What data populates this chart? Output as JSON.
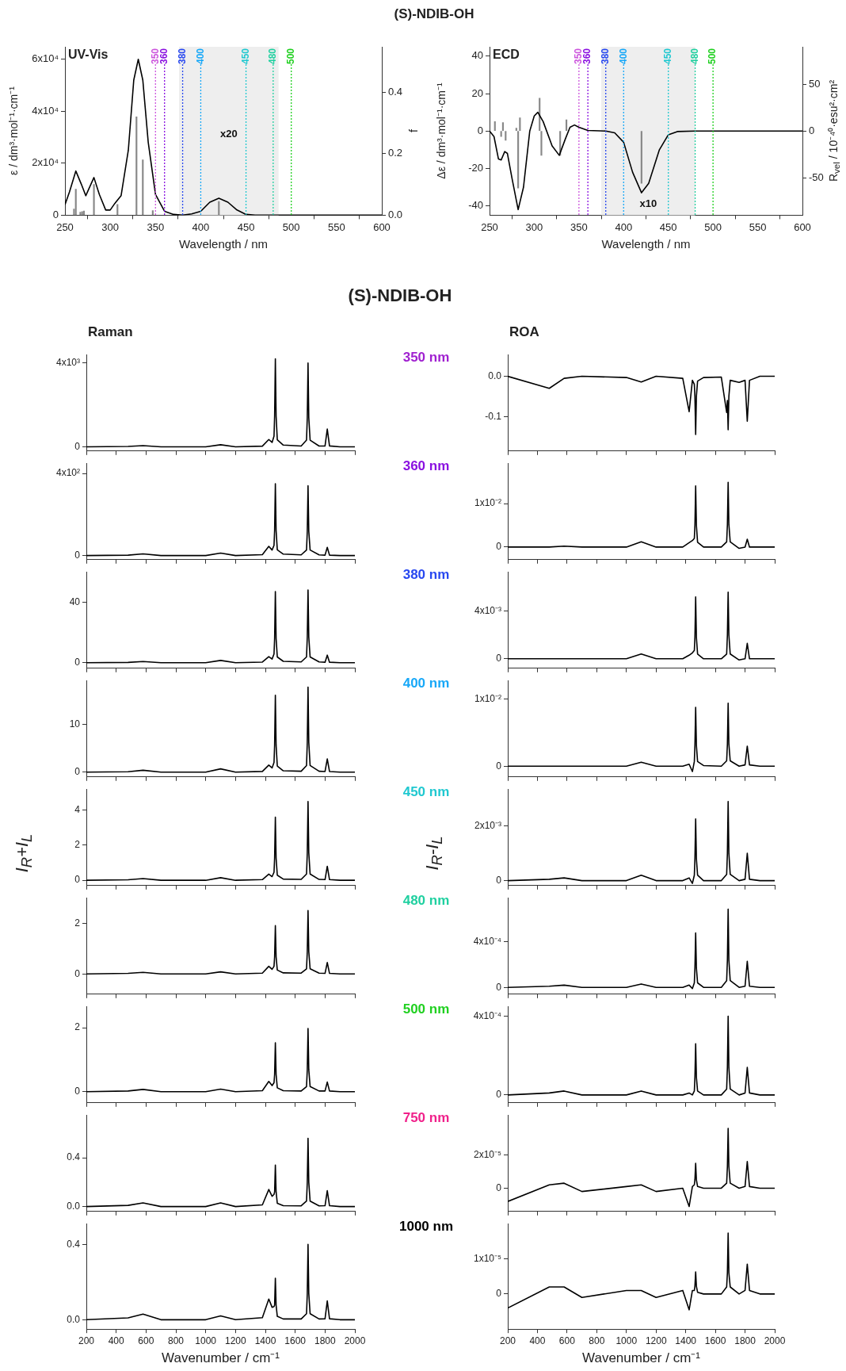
{
  "chart_data": [
    {
      "type": "line",
      "title": "(S)-NDIB-OH",
      "subtitle": "UV-Vis",
      "xlabel": "Wavelength / nm",
      "ylabel": "ε / dm³·mol⁻¹·cm⁻¹",
      "y2label": "f",
      "xlim": [
        250,
        600
      ],
      "xticks": [
        250,
        300,
        350,
        400,
        450,
        500,
        550,
        600
      ],
      "ylim": [
        0,
        64800
      ],
      "yticks": [
        0,
        {
          "value": 20000,
          "label": "2x10⁴"
        },
        {
          "value": 40000,
          "label": "4x10⁴"
        },
        {
          "value": 60000,
          "label": "6x10⁴"
        }
      ],
      "y2lim": [
        0,
        0.548
      ],
      "y2ticks": [
        {
          "value": 0,
          "label": "0.0"
        },
        0.2,
        0.4
      ],
      "series": [
        {
          "type": "bar",
          "axis": "y2",
          "color": "#888888",
          "x": [
            260,
            262,
            267,
            269,
            271,
            282,
            308,
            329,
            336,
            347,
            420
          ],
          "values": [
            0.02,
            0.085,
            0.01,
            0.012,
            0.014,
            0.1,
            0.035,
            0.32,
            0.18,
            0.015,
            0.045
          ]
        },
        {
          "color": "#000000",
          "x": [
            250,
            255,
            262,
            268,
            273,
            282,
            288,
            295,
            300,
            305,
            312,
            320,
            326,
            331,
            336,
            342,
            350,
            360,
            370,
            380,
            390,
            400,
            410,
            420,
            430,
            440,
            450,
            460,
            600
          ],
          "values": [
            4000,
            9000,
            17000,
            12000,
            7500,
            14500,
            8000,
            2000,
            2000,
            4500,
            7500,
            25000,
            52000,
            60000,
            52000,
            28000,
            8000,
            1500,
            300,
            0,
            500,
            1500,
            5000,
            6500,
            5000,
            2000,
            300,
            0,
            0
          ]
        }
      ],
      "bands": [
        {
          "axis": "x",
          "from": 376,
          "to": 486,
          "label": "x20",
          "color": "#eeeeee"
        }
      ],
      "ref_lines": [
        {
          "axis": "x",
          "value": 350,
          "label": "350",
          "color": "#cc55dd",
          "line_style": "dotted"
        },
        {
          "axis": "x",
          "value": 360,
          "label": "360",
          "color": "#8a10e0",
          "line_style": "dotted"
        },
        {
          "axis": "x",
          "value": 380,
          "label": "380",
          "color": "#2848f0",
          "line_style": "dotted"
        },
        {
          "axis": "x",
          "value": 400,
          "label": "400",
          "color": "#18a8f8",
          "line_style": "dotted"
        },
        {
          "axis": "x",
          "value": 450,
          "label": "450",
          "color": "#20c8d0",
          "line_style": "dotted"
        },
        {
          "axis": "x",
          "value": 480,
          "label": "480",
          "color": "#20d0a0",
          "line_style": "dotted"
        },
        {
          "axis": "x",
          "value": 500,
          "label": "500",
          "color": "#20d020",
          "line_style": "dotted"
        }
      ]
    },
    {
      "type": "line",
      "subtitle": "ECD",
      "xlabel": "Wavelength / nm",
      "ylabel": "Δε / dm³·mol⁻¹·cm⁻¹",
      "y2label": "R$_{vel}$ / 10⁻⁴⁰·esu²·cm²",
      "xlim": [
        250,
        600
      ],
      "xticks": [
        250,
        300,
        350,
        400,
        450,
        500,
        550,
        600
      ],
      "ylim": [
        -45,
        45
      ],
      "yticks": [
        -40,
        -20,
        0,
        20,
        40
      ],
      "y2lim": [
        -90,
        90
      ],
      "y2ticks": [
        -50,
        0,
        50
      ],
      "series": [
        {
          "type": "bar",
          "axis": "y2",
          "color": "#888888",
          "x": [
            256,
            263,
            265,
            268,
            280,
            282,
            284,
            306,
            308,
            329,
            336,
            420
          ],
          "values": [
            10,
            -6,
            9,
            -10,
            3,
            -61,
            14,
            35,
            -26,
            -26,
            12,
            -56
          ]
        },
        {
          "color": "#000000",
          "x": [
            250,
            255,
            260,
            263,
            267,
            270,
            275,
            282,
            288,
            295,
            300,
            304,
            310,
            320,
            328,
            335,
            340,
            345,
            350,
            360,
            380,
            390,
            400,
            410,
            420,
            428,
            440,
            450,
            460,
            480,
            600
          ],
          "values": [
            0,
            -3,
            -15,
            -15.5,
            -11,
            -12,
            -25,
            -42,
            -30,
            0,
            8,
            10,
            5,
            -8,
            -13,
            -4,
            2,
            3.2,
            2,
            0.3,
            0,
            -1,
            -6,
            -22,
            -33,
            -28,
            -10,
            -2,
            -0.3,
            0,
            0
          ]
        }
      ],
      "bands": [
        {
          "axis": "x",
          "from": 375,
          "to": 480,
          "label": "x10",
          "color": "#eeeeee"
        }
      ],
      "ref_lines": [
        {
          "axis": "x",
          "value": 350,
          "label": "350",
          "color": "#cc55dd",
          "line_style": "dotted"
        },
        {
          "axis": "x",
          "value": 360,
          "label": "360",
          "color": "#8a10e0",
          "line_style": "dotted"
        },
        {
          "axis": "x",
          "value": 380,
          "label": "380",
          "color": "#2848f0",
          "line_style": "dotted"
        },
        {
          "axis": "x",
          "value": 400,
          "label": "400",
          "color": "#18a8f8",
          "line_style": "dotted"
        },
        {
          "axis": "x",
          "value": 450,
          "label": "450",
          "color": "#20c8d0",
          "line_style": "dotted"
        },
        {
          "axis": "x",
          "value": 480,
          "label": "480",
          "color": "#20d0a0",
          "line_style": "dotted"
        },
        {
          "axis": "x",
          "value": 500,
          "label": "500",
          "color": "#20d020",
          "line_style": "dotted"
        }
      ]
    },
    {
      "type": "line",
      "title": "(S)-NDIB-OH",
      "subtitle": "Raman",
      "annotations": [
        "350 nm"
      ],
      "tick_labels": "y",
      "xlim": [
        200,
        2000
      ],
      "xticks": [
        200,
        400,
        600,
        800,
        1000,
        1200,
        1400,
        1600,
        1800,
        2000
      ],
      "ylim": [
        -200,
        4400
      ],
      "yticks": [
        0,
        {
          "value": 4000,
          "label": "4x10³"
        }
      ],
      "x": [
        200,
        480,
        580,
        700,
        1000,
        1100,
        1200,
        1380,
        1423,
        1445,
        1458,
        1462,
        1467,
        1472,
        1480,
        1520,
        1640,
        1676,
        1681,
        1686,
        1691,
        1700,
        1760,
        1800,
        1815,
        1830,
        1900,
        2000
      ],
      "series": [
        {
          "color": "#000000",
          "values": [
            0,
            18,
            60,
            0,
            0,
            100,
            0,
            35,
            350,
            210,
            511,
            1470,
            4200,
            1470,
            336,
            84,
            40,
            320,
            1400,
            4000,
            1400,
            320,
            40,
            43,
            850,
            43,
            0,
            0
          ]
        }
      ]
    },
    {
      "type": "line",
      "subtitle": "ROA",
      "tick_labels": "y",
      "xlim": [
        200,
        2000
      ],
      "xticks": [
        200,
        400,
        600,
        800,
        1000,
        1200,
        1400,
        1600,
        1800,
        2000
      ],
      "ylim": [
        -0.186,
        0.054
      ],
      "yticks": [
        {
          "value": -0.1,
          "label": "-0.1"
        },
        {
          "value": 0,
          "label": "0.0"
        }
      ],
      "x": [
        200,
        480,
        580,
        700,
        1000,
        1100,
        1200,
        1380,
        1423,
        1445,
        1458,
        1462,
        1467,
        1472,
        1480,
        1520,
        1640,
        1676,
        1681,
        1686,
        1691,
        1700,
        1760,
        1800,
        1815,
        1830,
        1900,
        2000
      ],
      "series": [
        {
          "color": "#000000",
          "values": [
            0,
            -0.03,
            -0.005,
            0,
            -0.003,
            -0.014,
            0,
            -0.005,
            -0.088,
            -0.01,
            -0.02,
            -0.05,
            -0.145,
            -0.05,
            -0.012,
            -0.003,
            -0.002,
            -0.09,
            -0.06,
            -0.133,
            -0.05,
            -0.01,
            -0.015,
            -0.01,
            -0.112,
            -0.01,
            0,
            0
          ]
        }
      ]
    },
    {
      "type": "line",
      "annotations": [
        "360 nm"
      ],
      "tick_labels": "y",
      "xlim": [
        200,
        2000
      ],
      "xticks": [
        200,
        400,
        600,
        800,
        1000,
        1200,
        1400,
        1600,
        1800,
        2000
      ],
      "ylim": [
        -20,
        450
      ],
      "yticks": [
        0,
        {
          "value": 400,
          "label": "4x10²"
        }
      ],
      "x": [
        200,
        480,
        580,
        700,
        1000,
        1100,
        1200,
        1380,
        1423,
        1445,
        1458,
        1462,
        1467,
        1472,
        1480,
        1520,
        1640,
        1676,
        1681,
        1686,
        1691,
        1700,
        1760,
        1800,
        1815,
        1830,
        1900,
        2000
      ],
      "series": [
        {
          "color": "#000000",
          "values": [
            0,
            2,
            8,
            0,
            0,
            12,
            0,
            4.5,
            45,
            27,
            50,
            122,
            350,
            122,
            28,
            7,
            3.4,
            27,
            119,
            340,
            119,
            27,
            3.4,
            2,
            40,
            2,
            0,
            0
          ]
        }
      ]
    },
    {
      "type": "line",
      "tick_labels": "y",
      "xlim": [
        200,
        2000
      ],
      "xticks": [
        200,
        400,
        600,
        800,
        1000,
        1200,
        1400,
        1600,
        1800,
        2000
      ],
      "ylim": [
        -0.0029,
        0.0193
      ],
      "yticks": [
        0,
        {
          "value": 0.01,
          "label": "1x10⁻²"
        }
      ],
      "x": [
        200,
        480,
        580,
        700,
        1000,
        1100,
        1200,
        1380,
        1423,
        1445,
        1458,
        1462,
        1467,
        1472,
        1480,
        1520,
        1640,
        1676,
        1681,
        1686,
        1691,
        1700,
        1760,
        1800,
        1815,
        1830,
        1900,
        2000
      ],
      "series": [
        {
          "color": "#000000",
          "values": [
            0,
            0,
            0.0002,
            0,
            0,
            0.0012,
            0,
            0,
            0.001,
            0.0015,
            0.002,
            0.005,
            0.0141,
            0.005,
            0.0011,
            0,
            0,
            0.0012,
            0.0052,
            0.0149,
            0.0052,
            0.0012,
            -0.0003,
            0,
            0.0018,
            0,
            0,
            0
          ]
        }
      ]
    },
    {
      "type": "line",
      "annotations": [
        "380 nm"
      ],
      "tick_labels": "y",
      "xlim": [
        200,
        2000
      ],
      "xticks": [
        200,
        400,
        600,
        800,
        1000,
        1200,
        1400,
        1600,
        1800,
        2000
      ],
      "ylim": [
        -3.7,
        60
      ],
      "yticks": [
        0,
        40
      ],
      "x": [
        200,
        480,
        580,
        700,
        1000,
        1100,
        1200,
        1380,
        1423,
        1445,
        1458,
        1462,
        1467,
        1472,
        1480,
        1520,
        1640,
        1676,
        1681,
        1686,
        1691,
        1700,
        1760,
        1800,
        1815,
        1830,
        1900,
        2000
      ],
      "series": [
        {
          "color": "#000000",
          "values": [
            0,
            0.2,
            0.8,
            0,
            0,
            1.5,
            0,
            0.4,
            4,
            2.4,
            5.8,
            16,
            47,
            16,
            3.8,
            0.9,
            0.5,
            3.8,
            17,
            48,
            17,
            3.8,
            0.5,
            0.3,
            5,
            0.3,
            0,
            0
          ]
        }
      ]
    },
    {
      "type": "line",
      "tick_labels": "y",
      "xlim": [
        200,
        2000
      ],
      "xticks": [
        200,
        400,
        600,
        800,
        1000,
        1200,
        1400,
        1600,
        1800,
        2000
      ],
      "ylim": [
        -0.0008,
        0.0073
      ],
      "yticks": [
        0,
        {
          "value": 0.004,
          "label": "4x10⁻³"
        }
      ],
      "x": [
        200,
        480,
        580,
        700,
        1000,
        1100,
        1200,
        1380,
        1423,
        1445,
        1458,
        1462,
        1467,
        1472,
        1480,
        1520,
        1640,
        1676,
        1681,
        1686,
        1691,
        1700,
        1760,
        1800,
        1815,
        1830,
        1900,
        2000
      ],
      "series": [
        {
          "color": "#000000",
          "values": [
            0,
            0,
            0,
            0,
            0,
            0.0004,
            0,
            0,
            0.0003,
            0.0005,
            0.0007,
            0.0018,
            0.0052,
            0.0018,
            0.0004,
            0,
            0,
            0.0004,
            0.002,
            0.0056,
            0.002,
            0.0004,
            -0.0001,
            0,
            0.0013,
            0,
            0,
            0
          ]
        }
      ]
    },
    {
      "type": "line",
      "annotations": [
        "400 nm"
      ],
      "tick_labels": "y",
      "xlim": [
        200,
        2000
      ],
      "xticks": [
        200,
        400,
        600,
        800,
        1000,
        1200,
        1400,
        1600,
        1800,
        2000
      ],
      "ylim": [
        -1,
        19.3
      ],
      "yticks": [
        0,
        10
      ],
      "x": [
        200,
        480,
        580,
        700,
        1000,
        1100,
        1200,
        1380,
        1423,
        1445,
        1458,
        1462,
        1467,
        1472,
        1480,
        1520,
        1640,
        1676,
        1681,
        1686,
        1691,
        1700,
        1760,
        1800,
        1815,
        1830,
        1900,
        2000
      ],
      "series": [
        {
          "color": "#000000",
          "values": [
            0,
            0.1,
            0.4,
            0,
            0,
            0.7,
            0,
            0.15,
            1.5,
            0.9,
            2.05,
            5.7,
            16.2,
            5.7,
            1.3,
            0.3,
            0.2,
            1.4,
            6.3,
            17.9,
            6.3,
            1.4,
            0.2,
            0.14,
            2.8,
            0.14,
            0,
            0
          ]
        }
      ]
    },
    {
      "type": "line",
      "tick_labels": "y",
      "xlim": [
        200,
        2000
      ],
      "xticks": [
        200,
        400,
        600,
        800,
        1000,
        1200,
        1400,
        1600,
        1800,
        2000
      ],
      "ylim": [
        -0.0016,
        0.0128
      ],
      "yticks": [
        0,
        {
          "value": 0.01,
          "label": "1x10⁻²"
        }
      ],
      "x": [
        200,
        480,
        580,
        700,
        1000,
        1100,
        1200,
        1380,
        1423,
        1445,
        1458,
        1462,
        1467,
        1472,
        1480,
        1520,
        1640,
        1676,
        1681,
        1686,
        1691,
        1700,
        1760,
        1800,
        1815,
        1830,
        1900,
        2000
      ],
      "series": [
        {
          "color": "#000000",
          "values": [
            0,
            0,
            0,
            0,
            0,
            0.0006,
            0,
            0,
            0.0003,
            -0.0008,
            0.0007,
            0.0031,
            0.0088,
            0.0031,
            0.0007,
            0.0001,
            0,
            0.0008,
            0.0033,
            0.0094,
            0.0033,
            0.0008,
            0,
            0.0002,
            0.003,
            0.0002,
            0,
            0
          ]
        }
      ]
    },
    {
      "type": "line",
      "annotations": [
        "450 nm"
      ],
      "ylabel": "I$_{R}$+I$_{L}$",
      "tick_labels": "y",
      "xlim": [
        200,
        2000
      ],
      "xticks": [
        200,
        400,
        600,
        800,
        1000,
        1200,
        1400,
        1600,
        1800,
        2000
      ],
      "ylim": [
        -0.3,
        5.2
      ],
      "yticks": [
        0,
        2,
        4
      ],
      "x": [
        200,
        480,
        580,
        700,
        1000,
        1100,
        1200,
        1380,
        1423,
        1445,
        1458,
        1462,
        1467,
        1472,
        1480,
        1520,
        1640,
        1676,
        1681,
        1686,
        1691,
        1700,
        1760,
        1800,
        1815,
        1830,
        1900,
        2000
      ],
      "series": [
        {
          "color": "#000000",
          "values": [
            0,
            0.03,
            0.1,
            0,
            0,
            0.15,
            0,
            0.04,
            0.35,
            0.21,
            0.46,
            1.26,
            3.6,
            1.26,
            0.29,
            0.07,
            0.05,
            0.36,
            1.58,
            4.5,
            1.58,
            0.36,
            0.05,
            0.04,
            0.8,
            0.04,
            0,
            0
          ]
        }
      ]
    },
    {
      "type": "line",
      "ylabel": "I$_{R}$-I$_{L}$",
      "tick_labels": "y",
      "xlim": [
        200,
        2000
      ],
      "xticks": [
        200,
        400,
        600,
        800,
        1000,
        1200,
        1400,
        1600,
        1800,
        2000
      ],
      "ylim": [
        -0.00018,
        0.00335
      ],
      "yticks": [
        0,
        {
          "value": 0.002,
          "label": "2x10⁻³"
        }
      ],
      "x": [
        200,
        480,
        580,
        700,
        1000,
        1100,
        1200,
        1380,
        1423,
        1445,
        1458,
        1462,
        1467,
        1472,
        1480,
        1520,
        1640,
        1676,
        1681,
        1686,
        1691,
        1700,
        1760,
        1800,
        1815,
        1830,
        1900,
        2000
      ],
      "series": [
        {
          "color": "#000000",
          "values": [
            0,
            5e-05,
            0.0001,
            0,
            0,
            0.0002,
            0,
            0,
            0.0001,
            -0.0001,
            0.0002,
            0.0008,
            0.00226,
            0.0008,
            0.0002,
            0,
            0,
            0.00023,
            0.001,
            0.0029,
            0.001,
            0.00023,
            0,
            5e-05,
            0.001,
            5e-05,
            0,
            0
          ]
        }
      ]
    },
    {
      "type": "line",
      "annotations": [
        "480 nm"
      ],
      "tick_labels": "y",
      "xlim": [
        200,
        2000
      ],
      "xticks": [
        200,
        400,
        600,
        800,
        1000,
        1200,
        1400,
        1600,
        1800,
        2000
      ],
      "ylim": [
        -0.8,
        3
      ],
      "yticks": [
        0,
        2
      ],
      "x": [
        200,
        480,
        580,
        700,
        1000,
        1100,
        1200,
        1380,
        1423,
        1445,
        1458,
        1462,
        1467,
        1472,
        1480,
        1520,
        1640,
        1676,
        1681,
        1686,
        1691,
        1700,
        1760,
        1800,
        1815,
        1830,
        1900,
        2000
      ],
      "series": [
        {
          "color": "#000000",
          "values": [
            0,
            0.02,
            0.06,
            0,
            0,
            0.08,
            0,
            0.03,
            0.3,
            0.18,
            0.3,
            0.67,
            1.9,
            0.67,
            0.15,
            0.04,
            0.03,
            0.2,
            0.88,
            2.5,
            0.88,
            0.2,
            0.03,
            0.02,
            0.45,
            0.02,
            0,
            0
          ]
        }
      ]
    },
    {
      "type": "line",
      "tick_labels": "y",
      "xlim": [
        200,
        2000
      ],
      "xticks": [
        200,
        400,
        600,
        800,
        1000,
        1200,
        1400,
        1600,
        1800,
        2000
      ],
      "ylim": [
        -6e-05,
        0.00079
      ],
      "yticks": [
        0,
        {
          "value": 0.0004,
          "label": "4x10⁻⁴"
        }
      ],
      "x": [
        200,
        480,
        580,
        700,
        1000,
        1100,
        1200,
        1380,
        1423,
        1445,
        1458,
        1462,
        1467,
        1472,
        1480,
        1520,
        1640,
        1676,
        1681,
        1686,
        1691,
        1700,
        1760,
        1800,
        1815,
        1830,
        1900,
        2000
      ],
      "series": [
        {
          "color": "#000000",
          "values": [
            0,
            1e-05,
            2e-05,
            0,
            0,
            3e-05,
            0,
            0,
            2e-05,
            -1e-05,
            4e-05,
            0.00017,
            0.00048,
            0.00017,
            4e-05,
            0,
            0,
            6e-05,
            0.00024,
            0.00069,
            0.00024,
            6e-05,
            0,
            1e-05,
            0.00023,
            1e-05,
            0,
            0
          ]
        }
      ]
    },
    {
      "type": "line",
      "annotations": [
        "500 nm"
      ],
      "tick_labels": "y",
      "xlim": [
        200,
        2000
      ],
      "xticks": [
        200,
        400,
        600,
        800,
        1000,
        1200,
        1400,
        1600,
        1800,
        2000
      ],
      "ylim": [
        -0.35,
        2.67
      ],
      "yticks": [
        0,
        2
      ],
      "x": [
        200,
        480,
        580,
        700,
        1000,
        1100,
        1200,
        1380,
        1423,
        1445,
        1458,
        1462,
        1467,
        1472,
        1480,
        1520,
        1640,
        1676,
        1681,
        1686,
        1691,
        1700,
        1760,
        1800,
        1815,
        1830,
        1900,
        2000
      ],
      "series": [
        {
          "color": "#000000",
          "values": [
            0,
            0.02,
            0.07,
            0,
            0,
            0.08,
            0,
            0.03,
            0.32,
            0.19,
            0.28,
            0.54,
            1.53,
            0.54,
            0.12,
            0.03,
            0.02,
            0.16,
            0.69,
            1.98,
            0.69,
            0.16,
            0.02,
            0.02,
            0.3,
            0.02,
            0,
            0
          ]
        }
      ]
    },
    {
      "type": "line",
      "tick_labels": "y",
      "xlim": [
        200,
        2000
      ],
      "xticks": [
        200,
        400,
        600,
        800,
        1000,
        1200,
        1400,
        1600,
        1800,
        2000
      ],
      "ylim": [
        -4e-05,
        0.00045
      ],
      "yticks": [
        0,
        {
          "value": 0.0004,
          "label": "4x10⁻⁴"
        }
      ],
      "x": [
        200,
        480,
        580,
        700,
        1000,
        1100,
        1200,
        1380,
        1423,
        1445,
        1458,
        1462,
        1467,
        1472,
        1480,
        1520,
        1640,
        1676,
        1681,
        1686,
        1691,
        1700,
        1760,
        1800,
        1815,
        1830,
        1900,
        2000
      ],
      "series": [
        {
          "color": "#000000",
          "values": [
            0,
            1e-05,
            2e-05,
            0,
            0,
            2e-05,
            0,
            0,
            1e-05,
            0,
            2e-05,
            9e-05,
            0.00026,
            9e-05,
            2e-05,
            0,
            0,
            3e-05,
            0.00014,
            0.0004,
            0.00014,
            3e-05,
            0,
            1e-05,
            0.00014,
            1e-05,
            0,
            0
          ]
        }
      ]
    },
    {
      "type": "line",
      "annotations": [
        "750 nm"
      ],
      "tick_labels": "y",
      "xlim": [
        200,
        2000
      ],
      "xticks": [
        200,
        400,
        600,
        800,
        1000,
        1200,
        1400,
        1600,
        1800,
        2000
      ],
      "ylim": [
        -0.04,
        0.75
      ],
      "yticks": [
        {
          "value": 0,
          "label": "0.0"
        },
        0.4
      ],
      "x": [
        200,
        480,
        580,
        700,
        1000,
        1100,
        1200,
        1380,
        1423,
        1445,
        1458,
        1462,
        1467,
        1472,
        1480,
        1520,
        1640,
        1676,
        1681,
        1686,
        1691,
        1700,
        1760,
        1800,
        1815,
        1830,
        1900,
        2000
      ],
      "series": [
        {
          "color": "#000000",
          "values": [
            0,
            0.01,
            0.03,
            0,
            0,
            0.03,
            0,
            0.014,
            0.14,
            0.084,
            0.1,
            0.12,
            0.34,
            0.12,
            0.027,
            0.007,
            0.006,
            0.045,
            0.2,
            0.56,
            0.2,
            0.045,
            0.006,
            0.007,
            0.13,
            0.007,
            0,
            0
          ]
        }
      ]
    },
    {
      "type": "line",
      "tick_labels": "y",
      "xlim": [
        200,
        2000
      ],
      "xticks": [
        200,
        400,
        600,
        800,
        1000,
        1200,
        1400,
        1600,
        1800,
        2000
      ],
      "ylim": [
        -1.4e-05,
        4.4e-05
      ],
      "yticks": [
        0,
        {
          "value": 2e-05,
          "label": "2x10⁻⁵"
        }
      ],
      "x": [
        200,
        480,
        580,
        700,
        1000,
        1100,
        1200,
        1380,
        1423,
        1445,
        1458,
        1462,
        1467,
        1472,
        1480,
        1520,
        1640,
        1676,
        1681,
        1686,
        1691,
        1700,
        1760,
        1800,
        1815,
        1830,
        1900,
        2000
      ],
      "series": [
        {
          "color": "#000000",
          "values": [
            -8e-06,
            2e-06,
            3e-06,
            -2e-06,
            1e-06,
            2e-06,
            -2e-06,
            0,
            -1.1e-05,
            1e-06,
            2e-06,
            5e-06,
            1.5e-05,
            5e-06,
            1e-06,
            0,
            0,
            3e-06,
            1.3e-05,
            3.6e-05,
            1.3e-05,
            3e-06,
            0,
            1e-06,
            1.6e-05,
            1e-06,
            0,
            0
          ]
        }
      ]
    },
    {
      "type": "line",
      "annotations": [
        "1000 nm"
      ],
      "xlabel": "Wavenumber / cm⁻¹",
      "xlim": [
        200,
        2000
      ],
      "xticks": [
        200,
        400,
        600,
        800,
        1000,
        1200,
        1400,
        1600,
        1800,
        2000
      ],
      "ylim": [
        -0.05,
        0.51
      ],
      "yticks": [
        {
          "value": 0,
          "label": "0.0"
        },
        0.4
      ],
      "x": [
        200,
        480,
        580,
        700,
        1000,
        1100,
        1200,
        1380,
        1423,
        1445,
        1458,
        1462,
        1467,
        1472,
        1480,
        1520,
        1640,
        1676,
        1681,
        1686,
        1691,
        1700,
        1760,
        1800,
        1815,
        1830,
        1900,
        2000
      ],
      "series": [
        {
          "color": "#000000",
          "values": [
            0,
            0.01,
            0.03,
            0,
            0,
            0.02,
            0,
            0.011,
            0.11,
            0.066,
            0.07,
            0.077,
            0.22,
            0.077,
            0.018,
            0.004,
            0.004,
            0.032,
            0.14,
            0.4,
            0.14,
            0.032,
            0.004,
            0.005,
            0.1,
            0.005,
            0,
            0
          ]
        }
      ]
    },
    {
      "type": "line",
      "xlabel": "Wavenumber / cm⁻¹",
      "xlim": [
        200,
        2000
      ],
      "xticks": [
        200,
        400,
        600,
        800,
        1000,
        1200,
        1400,
        1600,
        1800,
        2000
      ],
      "ylim": [
        -1e-05,
        2e-05
      ],
      "yticks": [
        0,
        {
          "value": 1e-05,
          "label": "1x10⁻⁵"
        }
      ],
      "x": [
        200,
        480,
        580,
        700,
        1000,
        1100,
        1200,
        1380,
        1423,
        1445,
        1458,
        1462,
        1467,
        1472,
        1480,
        1520,
        1640,
        1676,
        1681,
        1686,
        1691,
        1700,
        1760,
        1800,
        1815,
        1830,
        1900,
        2000
      ],
      "series": [
        {
          "color": "#000000",
          "values": [
            -4e-06,
            2e-06,
            2e-06,
            -1e-06,
            1e-06,
            1e-06,
            -1e-06,
            1e-06,
            -4.5e-06,
            1e-06,
            1e-06,
            2.2e-06,
            6.3e-06,
            2.2e-06,
            5e-07,
            0,
            0,
            2e-06,
            6e-06,
            1.73e-05,
            6e-06,
            2e-06,
            0,
            1e-06,
            8.5e-06,
            1e-06,
            0,
            0
          ]
        }
      ]
    }
  ]
}
